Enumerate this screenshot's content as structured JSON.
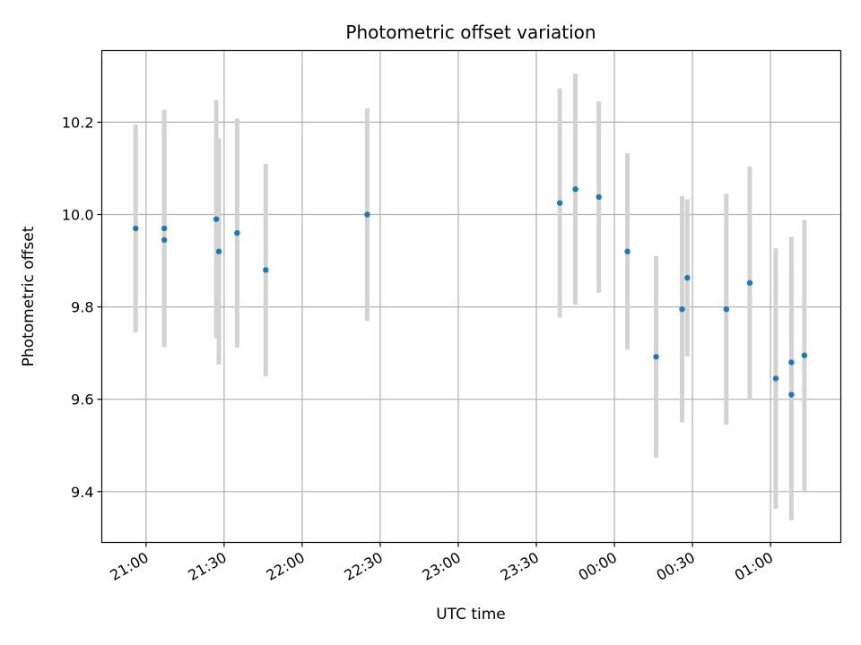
{
  "chart_data": {
    "type": "scatter",
    "title": "Photometric offset variation",
    "xlabel": "UTC time",
    "ylabel": "Photometric offset",
    "grid": true,
    "x_axis": {
      "type": "time",
      "range": [
        "20:43",
        "01:27"
      ],
      "ticks": [
        "21:00",
        "21:30",
        "22:00",
        "22:30",
        "23:00",
        "23:30",
        "00:00",
        "00:30",
        "01:00"
      ],
      "tick_label_rotation_deg": 30
    },
    "y_axis": {
      "range": [
        9.29,
        10.355
      ],
      "ticks": [
        "9.4",
        "9.6",
        "9.8",
        "10.0",
        "10.2"
      ]
    },
    "point_color": "#1f77b4",
    "errorbar_color": "#d3d3d3",
    "points": [
      {
        "x": "20:56",
        "y": 9.97,
        "err": 0.225
      },
      {
        "x": "21:07",
        "y": 9.97,
        "err": 0.257
      },
      {
        "x": "21:07",
        "y": 9.945,
        "err": 0.232
      },
      {
        "x": "21:27",
        "y": 9.99,
        "err": 0.258
      },
      {
        "x": "21:28",
        "y": 9.92,
        "err": 0.245
      },
      {
        "x": "21:35",
        "y": 9.96,
        "err": 0.248
      },
      {
        "x": "21:46",
        "y": 9.88,
        "err": 0.23
      },
      {
        "x": "22:25",
        "y": 10.0,
        "err": 0.23
      },
      {
        "x": "23:39",
        "y": 10.025,
        "err": 0.248
      },
      {
        "x": "23:45",
        "y": 10.055,
        "err": 0.25
      },
      {
        "x": "23:54",
        "y": 10.038,
        "err": 0.207
      },
      {
        "x": "00:05",
        "y": 9.92,
        "err": 0.213
      },
      {
        "x": "00:16",
        "y": 9.692,
        "err": 0.218
      },
      {
        "x": "00:26",
        "y": 9.795,
        "err": 0.245
      },
      {
        "x": "00:28",
        "y": 9.863,
        "err": 0.17
      },
      {
        "x": "00:43",
        "y": 9.795,
        "err": 0.25
      },
      {
        "x": "00:52",
        "y": 9.852,
        "err": 0.252
      },
      {
        "x": "01:02",
        "y": 9.645,
        "err": 0.282
      },
      {
        "x": "01:08",
        "y": 9.68,
        "err": 0.272
      },
      {
        "x": "01:08",
        "y": 9.61,
        "err": 0.272
      },
      {
        "x": "01:13",
        "y": 9.695,
        "err": 0.293
      }
    ]
  }
}
